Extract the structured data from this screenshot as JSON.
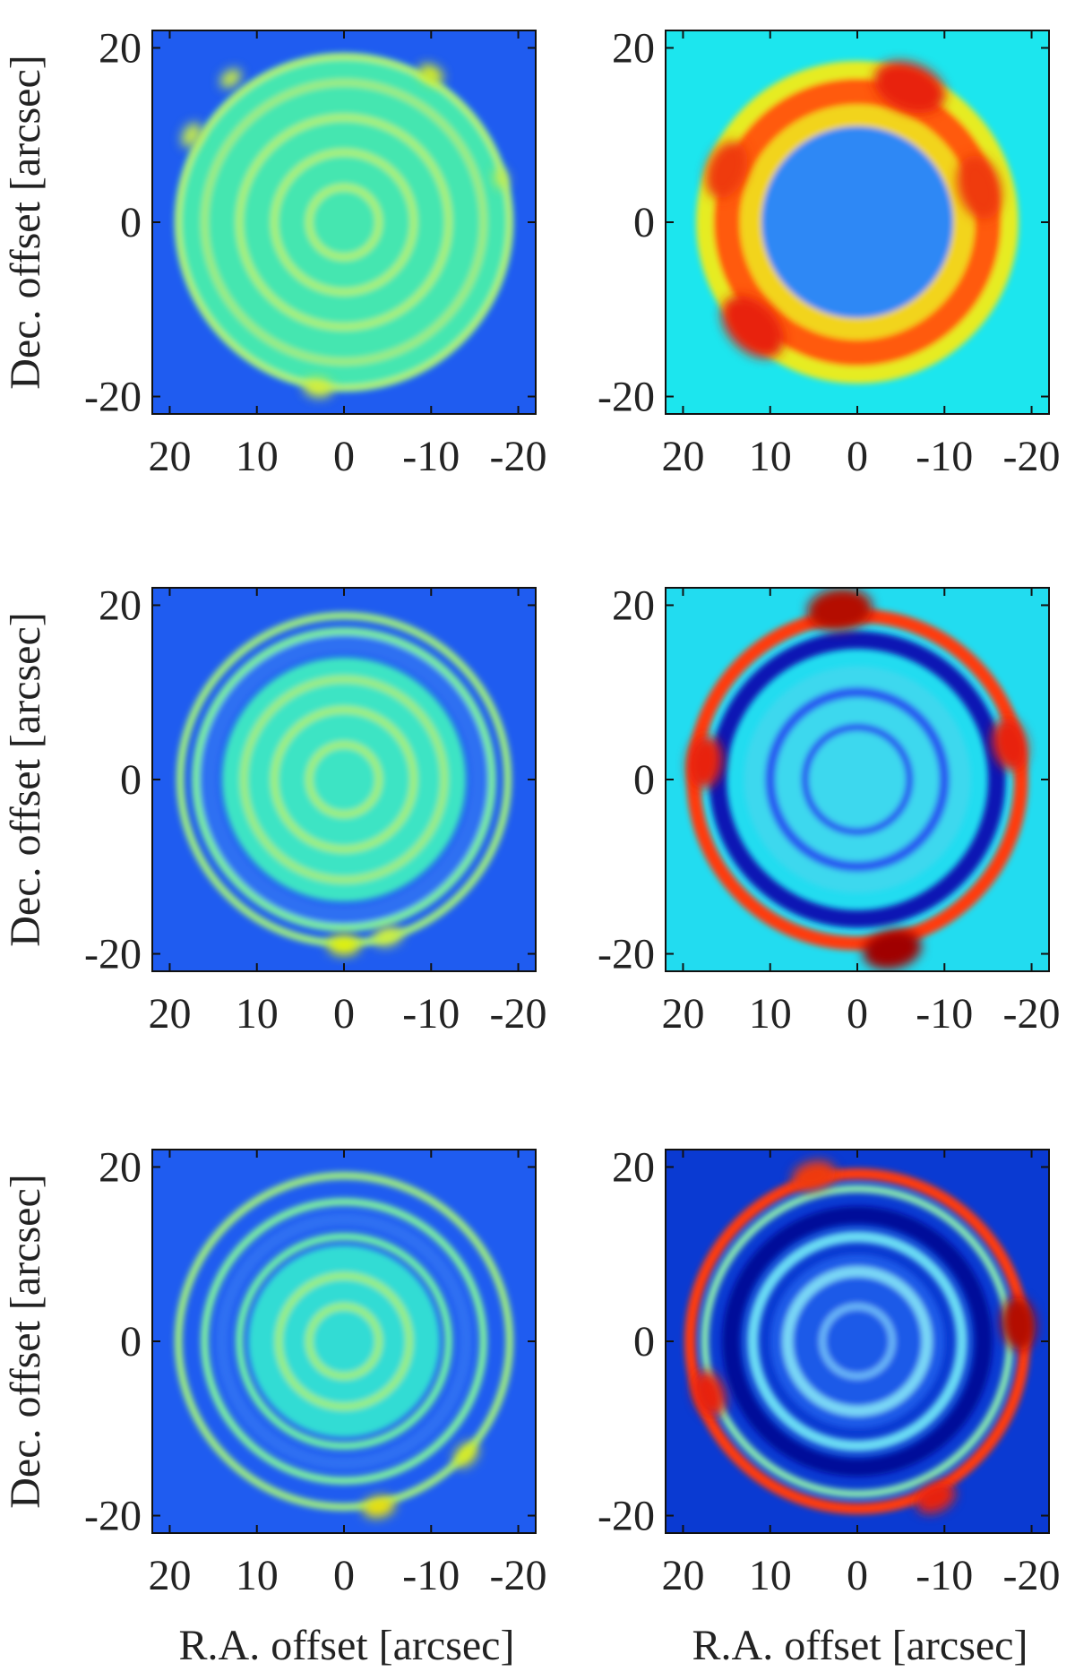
{
  "chart_data": {
    "type": "heatmap",
    "panel_count": 6,
    "grid": "off",
    "layout": "3 rows x 2 columns",
    "x_axis": {
      "label": "R.A. offset [arcsec]",
      "ticks": [
        20,
        10,
        0,
        -10,
        -20
      ],
      "tick_labels": [
        "20",
        "10",
        "0",
        "-10",
        "-20"
      ],
      "range": [
        22,
        -22
      ],
      "reversed": true
    },
    "y_axis": {
      "label": "Dec. offset [arcsec]",
      "ticks": [
        20,
        0,
        -20
      ],
      "tick_labels": [
        "20",
        "0",
        "-20"
      ],
      "range": [
        -22,
        22
      ]
    },
    "colormap": [
      "#00008f",
      "#0000ff",
      "#0080ff",
      "#00ffff",
      "#80ff80",
      "#ffff00",
      "#ff8000",
      "#ff0000",
      "#800000"
    ],
    "panels": [
      {
        "row": 0,
        "col": 0,
        "background": "#1f5cf0",
        "disk": {
          "radius": 19.5,
          "fill": "#45e6b0"
        },
        "rings": [
          {
            "radius": 4,
            "width": 0.9,
            "color": "#a8f07a"
          },
          {
            "radius": 8,
            "width": 0.9,
            "color": "#a8f07a"
          },
          {
            "radius": 12,
            "width": 0.9,
            "color": "#a8f07a"
          },
          {
            "radius": 16,
            "width": 0.9,
            "color": "#9cec82"
          },
          {
            "radius": 19,
            "width": 0.7,
            "color": "#b4f070"
          }
        ],
        "blobs": [
          {
            "x": -10,
            "y": 17,
            "r": 0.9,
            "color": "#d8f020"
          },
          {
            "x": 3,
            "y": -19,
            "r": 1.0,
            "color": "#d2ee3a"
          },
          {
            "x": 17.5,
            "y": 10,
            "r": 0.9,
            "color": "#c8ec48"
          },
          {
            "x": 13,
            "y": 16.5,
            "r": 0.8,
            "color": "#cdee40"
          },
          {
            "x": -18,
            "y": 5,
            "r": 0.7,
            "color": "#c0ec50"
          }
        ]
      },
      {
        "row": 0,
        "col": 1,
        "background": "#1ce6ee",
        "disk": {
          "radius": 11,
          "fill": "#2e88f5"
        },
        "rings": [
          {
            "radius": 13.5,
            "width": 5,
            "color": "#f2d41a"
          },
          {
            "radius": 15.5,
            "width": 4,
            "color": "#ff5a0a"
          },
          {
            "radius": 17.5,
            "width": 2,
            "color": "#e6ec24"
          }
        ],
        "blobs": [
          {
            "x": -6,
            "y": 15.5,
            "r": 2.5,
            "color": "#e8240a"
          },
          {
            "x": 12,
            "y": -12,
            "r": 2.5,
            "color": "#e8240a"
          },
          {
            "x": -14,
            "y": 4,
            "r": 2.2,
            "color": "#ef3a0a"
          },
          {
            "x": 15,
            "y": 6,
            "r": 2.0,
            "color": "#ef3a0a"
          }
        ]
      },
      {
        "row": 1,
        "col": 0,
        "background": "#1f5cf0",
        "disk": {
          "radius": 14,
          "fill": "#3ce4c4"
        },
        "rings": [
          {
            "radius": 4,
            "width": 0.9,
            "color": "#a0ee7e"
          },
          {
            "radius": 8,
            "width": 0.9,
            "color": "#a0ee7e"
          },
          {
            "radius": 11.5,
            "width": 0.9,
            "color": "#9cec82"
          },
          {
            "radius": 15.5,
            "width": 2,
            "color": "#2f6ff2"
          },
          {
            "radius": 17,
            "width": 0.9,
            "color": "#7ef0a0"
          },
          {
            "radius": 18.8,
            "width": 0.9,
            "color": "#9cec82"
          }
        ],
        "blobs": [
          {
            "x": 0,
            "y": -19,
            "r": 1.1,
            "color": "#e0f010"
          },
          {
            "x": -5,
            "y": -18,
            "r": 1.0,
            "color": "#cdee40"
          }
        ]
      },
      {
        "row": 1,
        "col": 1,
        "background": "#22dcf0",
        "disk": {
          "radius": 13,
          "fill": "#3cd8ee"
        },
        "rings": [
          {
            "radius": 6,
            "width": 0.9,
            "color": "#2a5cf0"
          },
          {
            "radius": 10,
            "width": 1.2,
            "color": "#2a5cf0"
          },
          {
            "radius": 16,
            "width": 2.0,
            "color": "#0812b4"
          },
          {
            "radius": 18.8,
            "width": 1.6,
            "color": "#ff3a0a"
          }
        ],
        "blobs": [
          {
            "x": 2,
            "y": 19.5,
            "r": 2.2,
            "color": "#b40800"
          },
          {
            "x": -4,
            "y": -19.5,
            "r": 2.0,
            "color": "#a00500"
          },
          {
            "x": 17.5,
            "y": 2,
            "r": 1.8,
            "color": "#e8200a"
          },
          {
            "x": -17.5,
            "y": 4,
            "r": 1.8,
            "color": "#e8200a"
          }
        ]
      },
      {
        "row": 2,
        "col": 0,
        "background": "#1f5cf0",
        "disk": {
          "radius": 11,
          "fill": "#32dcd4"
        },
        "rings": [
          {
            "radius": 4,
            "width": 0.9,
            "color": "#9aee82"
          },
          {
            "radius": 7.5,
            "width": 0.9,
            "color": "#9aee82"
          },
          {
            "radius": 12,
            "width": 0.9,
            "color": "#6ef0a8"
          },
          {
            "radius": 14,
            "width": 1.5,
            "color": "#2f6ff2"
          },
          {
            "radius": 16,
            "width": 0.9,
            "color": "#7ef0a0"
          },
          {
            "radius": 19,
            "width": 0.9,
            "color": "#9cec82"
          }
        ],
        "blobs": [
          {
            "x": -4,
            "y": -19,
            "r": 1.1,
            "color": "#e8e010"
          },
          {
            "x": -14,
            "y": -13,
            "r": 1.0,
            "color": "#d8ea22"
          }
        ]
      },
      {
        "row": 2,
        "col": 1,
        "background": "#0a3ad2",
        "disk": {
          "radius": 10,
          "fill": "#1e5ae8"
        },
        "rings": [
          {
            "radius": 4,
            "width": 0.8,
            "color": "#6ab8f8"
          },
          {
            "radius": 8,
            "width": 1.2,
            "color": "#7ad8f6"
          },
          {
            "radius": 12,
            "width": 1.3,
            "color": "#6adcf4"
          },
          {
            "radius": 14.5,
            "width": 2.0,
            "color": "#00089a"
          },
          {
            "radius": 17.5,
            "width": 0.9,
            "color": "#8aeab0"
          },
          {
            "radius": 19.2,
            "width": 1.3,
            "color": "#ff3a0a"
          }
        ],
        "blobs": [
          {
            "x": -18.5,
            "y": 2,
            "r": 1.8,
            "color": "#b40800"
          },
          {
            "x": 17,
            "y": -6,
            "r": 1.6,
            "color": "#e8200a"
          },
          {
            "x": 5,
            "y": 19,
            "r": 1.5,
            "color": "#ef3a0a"
          },
          {
            "x": -9,
            "y": -18,
            "r": 1.4,
            "color": "#e8200a"
          }
        ]
      }
    ]
  }
}
